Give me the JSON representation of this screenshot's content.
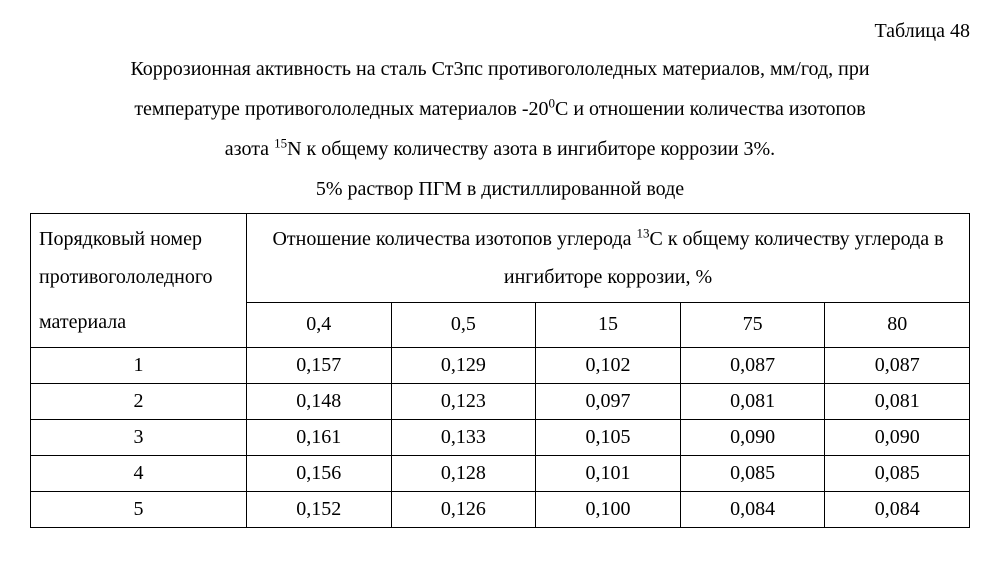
{
  "table_label": "Таблица 48",
  "caption_line1": "Коррозионная активность на сталь Ст3пс противогололедных материалов, мм/год, при",
  "caption_line2_a": "температуре противогололедных материалов -20",
  "caption_line2_sup": "0",
  "caption_line2_b": "С и отношении количества изотопов",
  "caption_line3_a": "азота ",
  "caption_line3_sup": "15",
  "caption_line3_b": "N  к общему количеству азота в ингибиторе коррозии 3%.",
  "caption_line4": "5% раствор ПГМ в дистиллированной воде",
  "row_header_top": "Порядковый номер противогололедного",
  "row_header_bot": "материала",
  "group_header_a": "Отношение количества изотопов углерода ",
  "group_header_sup": "13",
  "group_header_b": "С к общему количеству углерода в ингибиторе коррозии, %",
  "col1": "0,4",
  "col2": "0,5",
  "col3": "15",
  "col4": "75",
  "col5": "80",
  "r1_idx": "1",
  "r1_1": "0,157",
  "r1_2": "0,129",
  "r1_3": "0,102",
  "r1_4": "0,087",
  "r1_5": "0,087",
  "r2_idx": "2",
  "r2_1": "0,148",
  "r2_2": "0,123",
  "r2_3": "0,097",
  "r2_4": "0,081",
  "r2_5": "0,081",
  "r3_idx": "3",
  "r3_1": "0,161",
  "r3_2": "0,133",
  "r3_3": "0,105",
  "r3_4": "0,090",
  "r3_5": "0,090",
  "r4_idx": "4",
  "r4_1": "0,156",
  "r4_2": "0,128",
  "r4_3": "0,101",
  "r4_4": "0,085",
  "r4_5": "0,085",
  "r5_idx": "5",
  "r5_1": "0,152",
  "r5_2": "0,126",
  "r5_3": "0,100",
  "r5_4": "0,084",
  "r5_5": "0,084"
}
